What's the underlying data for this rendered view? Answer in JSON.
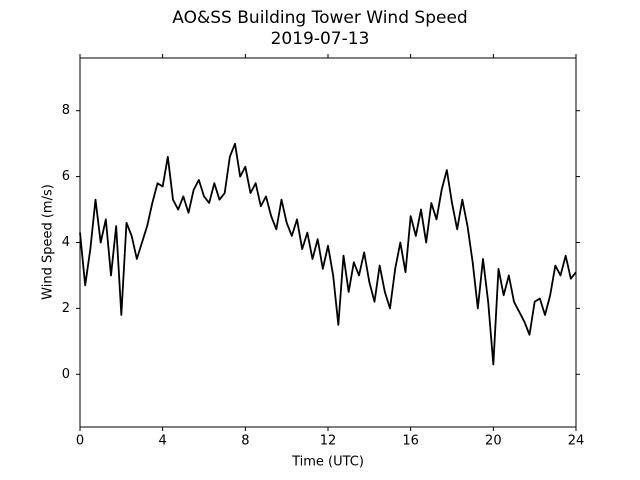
{
  "chart_data": {
    "type": "line",
    "title": "AO&SS Building Tower Wind Speed",
    "subtitle": "2019-07-13",
    "x_label": "Time (UTC)",
    "y_label": "Wind Speed (m/s)",
    "color": "#000000",
    "x": [
      0,
      0.25,
      0.5,
      0.75,
      1,
      1.25,
      1.5,
      1.75,
      2,
      2.25,
      2.5,
      2.75,
      3,
      3.25,
      3.5,
      3.75,
      4,
      4.25,
      4.5,
      4.75,
      5,
      5.25,
      5.5,
      5.75,
      6,
      6.25,
      6.5,
      6.75,
      7,
      7.25,
      7.5,
      7.75,
      8,
      8.25,
      8.5,
      8.75,
      9,
      9.25,
      9.5,
      9.75,
      10,
      10.25,
      10.5,
      10.75,
      11,
      11.25,
      11.5,
      11.75,
      12,
      12.25,
      12.5,
      12.75,
      13,
      13.25,
      13.5,
      13.75,
      14,
      14.25,
      14.5,
      14.75,
      15,
      15.25,
      15.5,
      15.75,
      16,
      16.25,
      16.5,
      16.75,
      17,
      17.25,
      17.5,
      17.75,
      18,
      18.25,
      18.5,
      18.75,
      19,
      19.25,
      19.5,
      19.75,
      20,
      20.25,
      20.5,
      20.75,
      21,
      21.25,
      21.5,
      21.75,
      22,
      22.25,
      22.5,
      22.75,
      23,
      23.25,
      23.5,
      23.75,
      24
    ],
    "values": [
      4.3,
      2.7,
      3.8,
      5.3,
      4.0,
      4.7,
      3.0,
      4.5,
      1.8,
      4.6,
      4.2,
      3.5,
      4.0,
      4.5,
      5.2,
      5.8,
      5.7,
      6.6,
      5.3,
      5.0,
      5.4,
      4.9,
      5.6,
      5.9,
      5.4,
      5.2,
      5.8,
      5.3,
      5.5,
      6.6,
      7.0,
      6.0,
      6.3,
      5.5,
      5.8,
      5.1,
      5.4,
      4.8,
      4.4,
      5.3,
      4.6,
      4.2,
      4.7,
      3.8,
      4.3,
      3.5,
      4.1,
      3.2,
      3.9,
      3.0,
      1.5,
      3.6,
      2.5,
      3.4,
      3.0,
      3.7,
      2.8,
      2.2,
      3.3,
      2.5,
      2.0,
      3.2,
      4.0,
      3.1,
      4.8,
      4.2,
      5.0,
      4.0,
      5.2,
      4.7,
      5.6,
      6.2,
      5.2,
      4.4,
      5.3,
      4.5,
      3.4,
      2.0,
      3.5,
      2.2,
      0.3,
      3.2,
      2.4,
      3.0,
      2.2,
      1.9,
      1.6,
      1.2,
      2.2,
      2.3,
      1.8,
      2.4,
      3.3,
      3.0,
      3.6,
      2.9,
      3.1
    ],
    "xlim": [
      0,
      24
    ],
    "xticks": [
      0,
      4,
      8,
      12,
      16,
      20,
      24
    ],
    "ylim": [
      -1.6,
      9.6
    ],
    "yticks": [
      0,
      2,
      4,
      6,
      8
    ],
    "grid": false
  }
}
